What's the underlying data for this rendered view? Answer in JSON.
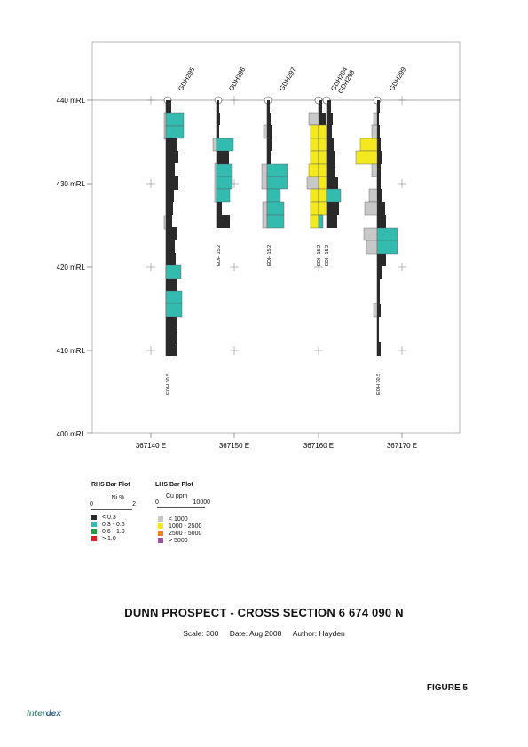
{
  "section": {
    "elev_labels": [
      "440 mRL",
      "430 mRL",
      "420 mRL",
      "410 mRL",
      "400 mRL"
    ],
    "elev_values": [
      440,
      430,
      420,
      410,
      400
    ],
    "east_labels": [
      "367140 E",
      "367150 E",
      "367160 E",
      "367170 E"
    ],
    "east_values": [
      367140,
      367150,
      367160,
      367170
    ],
    "holes": [
      {
        "id": "GDH295",
        "east": 367142.8,
        "eoh_label": "EOH 30.5",
        "depth": 30.5
      },
      {
        "id": "GDH296",
        "east": 367148.7,
        "eoh_label": "EOH 15.2",
        "depth": 15.2
      },
      {
        "id": "GDH297",
        "east": 367154.6,
        "eoh_label": "EOH 15.2",
        "depth": 15.2
      },
      {
        "id": "GDH294",
        "east": 367160.4,
        "eoh_label": "EOH 15.2",
        "depth": 15.2
      },
      {
        "id": "GDH298",
        "east": 367161.2,
        "eoh_label": "EOH 15.2",
        "depth": 15.2
      },
      {
        "id": "GDH299",
        "east": 367167.0,
        "eoh_label": "EOH 30.5",
        "depth": 30.5
      }
    ]
  },
  "legend_rhs": {
    "title": "RHS Bar Plot",
    "unit": "Ni %",
    "scale_min": "0",
    "scale_max": "2",
    "classes": [
      {
        "label": "< 0.3",
        "color": "#2a2a2a"
      },
      {
        "label": "0.3 - 0.6",
        "color": "#33bbb0"
      },
      {
        "label": "0.6 - 1.0",
        "color": "#22a040"
      },
      {
        "label": "> 1.0",
        "color": "#e02020"
      }
    ]
  },
  "legend_lhs": {
    "title": "LHS Bar Plot",
    "unit": "Cu ppm",
    "scale_min": "0",
    "scale_max": "10000",
    "classes": [
      {
        "label": "< 1000",
        "color": "#c8c8c8"
      },
      {
        "label": "1000 - 2500",
        "color": "#f4e81e"
      },
      {
        "label": "2500 - 5000",
        "color": "#f08020"
      },
      {
        "label": "> 5000",
        "color": "#a050a0"
      }
    ]
  },
  "title": "DUNN PROSPECT - CROSS SECTION 6 674 090 N",
  "meta": {
    "scale": "Scale: 300",
    "date": "Date: Aug 2008",
    "author": "Author: Hayden"
  },
  "figure_label": "FIGURE 5",
  "logo": {
    "part1": "Inter",
    "part2": "dex"
  }
}
